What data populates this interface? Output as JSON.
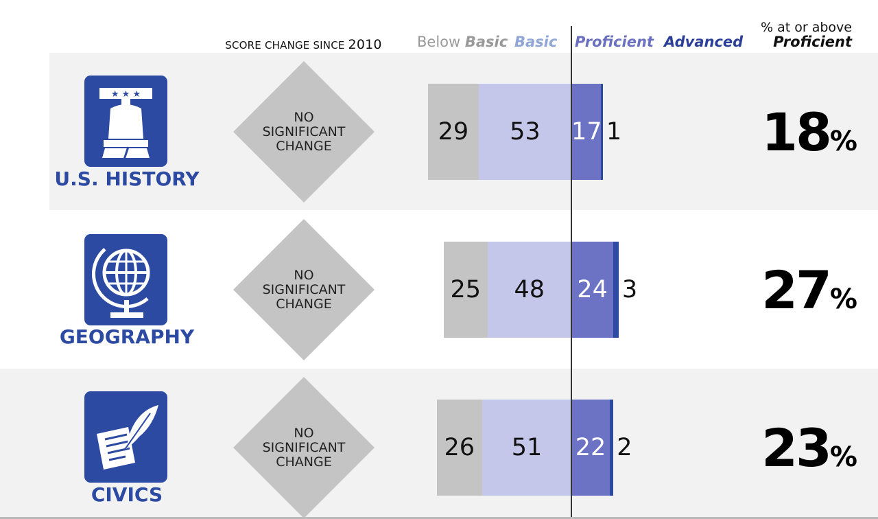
{
  "header": {
    "score_change_label": "SCORE CHANGE SINCE",
    "score_change_year": "2010",
    "legend": {
      "below_basic_prefix": "Below",
      "below_basic_em": "Basic",
      "basic": "Basic",
      "proficient": "Proficient",
      "advanced": "Advanced",
      "pct_label": "% at or above",
      "pct_em": "Proficient"
    }
  },
  "colors": {
    "below_basic": "#c4c4c4",
    "basic": "#c4c6ea",
    "proficient": "#6c73c4",
    "advanced": "#2d4aa3",
    "row_shade": "#f2f2f2",
    "icon_bg": "#2d4aa3",
    "diamond": "#c4c4c4"
  },
  "chart_data": {
    "type": "bar",
    "stacked": true,
    "diverging_at": "Proficient",
    "categories": [
      "U.S. HISTORY",
      "GEOGRAPHY",
      "CIVICS"
    ],
    "series": [
      {
        "name": "Below Basic",
        "values": [
          29,
          25,
          26
        ]
      },
      {
        "name": "Basic",
        "values": [
          53,
          48,
          51
        ]
      },
      {
        "name": "Proficient",
        "values": [
          17,
          24,
          22
        ]
      },
      {
        "name": "Advanced",
        "values": [
          1,
          3,
          2
        ]
      }
    ],
    "pct_at_or_above_proficient": [
      18,
      27,
      23
    ],
    "score_change": [
      "NO SIGNIFICANT CHANGE",
      "NO SIGNIFICANT CHANGE",
      "NO SIGNIFICANT CHANGE"
    ]
  },
  "rows": [
    {
      "subject": "U.S. HISTORY",
      "icon": "liberty-bell-icon",
      "change_lines": [
        "NO",
        "SIGNIFICANT",
        "CHANGE"
      ],
      "values": {
        "below_basic": "29",
        "basic": "53",
        "proficient": "17",
        "advanced": "1"
      },
      "pct": "18",
      "pct_sign": "%"
    },
    {
      "subject": "GEOGRAPHY",
      "icon": "globe-icon",
      "change_lines": [
        "NO",
        "SIGNIFICANT",
        "CHANGE"
      ],
      "values": {
        "below_basic": "25",
        "basic": "48",
        "proficient": "24",
        "advanced": "3"
      },
      "pct": "27",
      "pct_sign": "%"
    },
    {
      "subject": "CIVICS",
      "icon": "quill-document-icon",
      "change_lines": [
        "NO",
        "SIGNIFICANT",
        "CHANGE"
      ],
      "values": {
        "below_basic": "26",
        "basic": "51",
        "proficient": "22",
        "advanced": "2"
      },
      "pct": "23",
      "pct_sign": "%"
    }
  ]
}
